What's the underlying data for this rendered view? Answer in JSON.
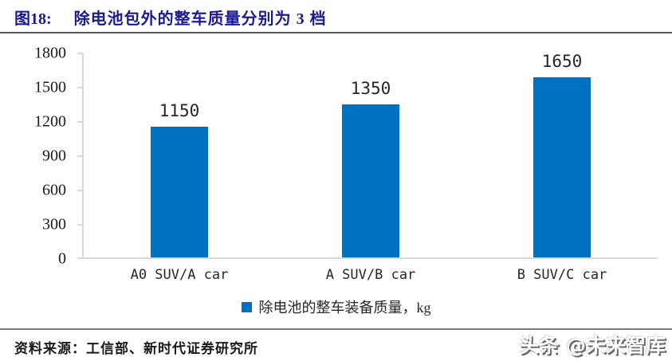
{
  "header": {
    "figure_label": "图18:",
    "title": "除电池包外的整车质量分别为 3 档"
  },
  "chart_data": {
    "type": "bar",
    "title": "除电池包外的整车质量分别为 3 档",
    "categories": [
      "A0 SUV/A car",
      "A SUV/B car",
      "B SUV/C car"
    ],
    "values": [
      1150,
      1350,
      1650
    ],
    "series_name": "除电池的整车装备质量，kg",
    "xlabel": "",
    "ylabel": "",
    "ylim": [
      0,
      1800
    ],
    "yticks": [
      1800,
      1500,
      1200,
      900,
      600,
      300,
      0
    ],
    "grid": false,
    "legend_position": "bottom",
    "bar_color": "#0070c0"
  },
  "footer": {
    "source": "资料来源：工信部、新时代证券研究所",
    "watermark": "头条 @未来智库"
  },
  "colors": {
    "title": "#1b1b8f",
    "bar": "#0070c0",
    "axis": "#d9d9d9",
    "title_rule": "#565656",
    "footer_rule": "#7e7e7e",
    "text": "#262626"
  }
}
